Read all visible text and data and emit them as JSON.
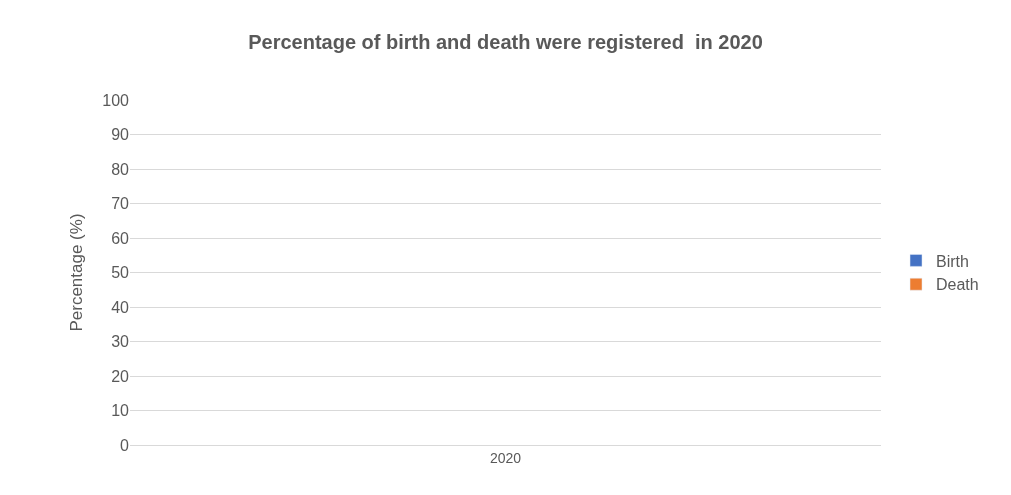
{
  "chart_data": {
    "type": "bar",
    "title": "Percentage of birth and death were registered  in 2020",
    "ylabel": "Percentage (%)",
    "categories": [
      "2020"
    ],
    "series": [
      {
        "name": "Birth",
        "color": "#4472c4",
        "values": [
          null
        ]
      },
      {
        "name": "Death",
        "color": "#ed7d31",
        "values": [
          null
        ]
      }
    ],
    "ylim": [
      0,
      100
    ],
    "yticks": [
      0,
      10,
      20,
      30,
      40,
      50,
      60,
      70,
      80,
      90,
      100
    ],
    "grid": "y",
    "legend": "right"
  }
}
